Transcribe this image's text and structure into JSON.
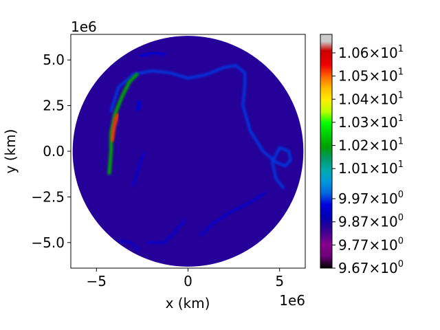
{
  "chart_data": {
    "type": "heatmap",
    "title": "",
    "xlabel": "x (km)",
    "ylabel": "y (km)",
    "x_offset_label": "1e6",
    "y_offset_label": "1e6",
    "xlim": [
      -6.4,
      6.4
    ],
    "ylim": [
      -6.4,
      6.4
    ],
    "domain": "disk",
    "domain_radius": 6.3,
    "x_ticks": [
      {
        "value": -5,
        "label": "−5"
      },
      {
        "value": 0,
        "label": "0"
      },
      {
        "value": 5,
        "label": "5"
      }
    ],
    "y_ticks": [
      {
        "value": 5.0,
        "label": "5.0"
      },
      {
        "value": 2.5,
        "label": "2.5"
      },
      {
        "value": 0.0,
        "label": "0.0"
      },
      {
        "value": -2.5,
        "label": "−2.5"
      },
      {
        "value": -5.0,
        "label": "−5.0"
      }
    ],
    "colorbar": {
      "colormap": "nipy_spectral",
      "min": 9.67,
      "max": 10.68,
      "ticks": [
        {
          "value": 9.67,
          "mantissa": "9.67",
          "exponent": "0"
        },
        {
          "value": 9.77,
          "mantissa": "9.77",
          "exponent": "0"
        },
        {
          "value": 9.87,
          "mantissa": "9.87",
          "exponent": "0"
        },
        {
          "value": 9.97,
          "mantissa": "9.97",
          "exponent": "0"
        },
        {
          "value": 10.1,
          "mantissa": "1.01",
          "exponent": "1"
        },
        {
          "value": 10.2,
          "mantissa": "1.02",
          "exponent": "1"
        },
        {
          "value": 10.3,
          "mantissa": "1.03",
          "exponent": "1"
        },
        {
          "value": 10.4,
          "mantissa": "1.04",
          "exponent": "1"
        },
        {
          "value": 10.5,
          "mantissa": "1.05",
          "exponent": "1"
        },
        {
          "value": 10.6,
          "mantissa": "1.06",
          "exponent": "1"
        }
      ],
      "multiply_sign": "×",
      "base": "10",
      "stops": [
        {
          "t": 0.0,
          "color": "#000000"
        },
        {
          "t": 0.05,
          "color": "#6a0078"
        },
        {
          "t": 0.1,
          "color": "#88008c"
        },
        {
          "t": 0.17,
          "color": "#2c0094"
        },
        {
          "t": 0.22,
          "color": "#0000b4"
        },
        {
          "t": 0.27,
          "color": "#0000dd"
        },
        {
          "t": 0.32,
          "color": "#0066dd"
        },
        {
          "t": 0.37,
          "color": "#0099dd"
        },
        {
          "t": 0.42,
          "color": "#00aaaa"
        },
        {
          "t": 0.47,
          "color": "#009966"
        },
        {
          "t": 0.52,
          "color": "#00a000"
        },
        {
          "t": 0.57,
          "color": "#00cc00"
        },
        {
          "t": 0.62,
          "color": "#00ff00"
        },
        {
          "t": 0.67,
          "color": "#bbff00"
        },
        {
          "t": 0.72,
          "color": "#ffee00"
        },
        {
          "t": 0.77,
          "color": "#ffbb00"
        },
        {
          "t": 0.82,
          "color": "#ff6600"
        },
        {
          "t": 0.87,
          "color": "#ee0000"
        },
        {
          "t": 0.93,
          "color": "#cc0000"
        },
        {
          "t": 0.97,
          "color": "#cccccc"
        },
        {
          "t": 1.0,
          "color": "#cccccc"
        }
      ]
    },
    "background_value": 9.85,
    "features": [
      {
        "name": "main-jet",
        "value": 9.97,
        "points": [
          [
            -4.2,
            2.2
          ],
          [
            -3.8,
            3.5
          ],
          [
            -3.0,
            4.2
          ],
          [
            -2.0,
            4.4
          ],
          [
            -1.0,
            4.3
          ],
          [
            0.0,
            4.0
          ],
          [
            1.0,
            4.2
          ],
          [
            2.0,
            4.6
          ],
          [
            2.6,
            4.7
          ],
          [
            3.1,
            4.3
          ],
          [
            3.1,
            3.6
          ],
          [
            3.0,
            2.5
          ],
          [
            3.4,
            1.1
          ],
          [
            4.1,
            0.0
          ],
          [
            4.8,
            -0.6
          ],
          [
            5.3,
            -0.8
          ],
          [
            5.6,
            -0.5
          ],
          [
            5.5,
            0.0
          ],
          [
            5.0,
            0.2
          ],
          [
            4.6,
            -0.6
          ],
          [
            4.8,
            -1.5
          ],
          [
            5.2,
            -2.0
          ]
        ],
        "width": 4
      },
      {
        "name": "jet-core",
        "value": 10.2,
        "points": [
          [
            -4.3,
            -1.2
          ],
          [
            -4.2,
            0.0
          ],
          [
            -4.2,
            1.0
          ],
          [
            -4.0,
            2.0
          ],
          [
            -3.6,
            3.0
          ],
          [
            -3.2,
            3.8
          ],
          [
            -2.8,
            4.2
          ]
        ],
        "width": 5
      },
      {
        "name": "jet-peak",
        "value": 10.52,
        "points": [
          [
            -4.15,
            0.6
          ],
          [
            -4.05,
            1.3
          ],
          [
            -3.85,
            2.0
          ]
        ],
        "width": 5
      },
      {
        "name": "jet-max",
        "value": 10.62,
        "points": [
          [
            -4.1,
            1.2
          ],
          [
            -4.0,
            1.8
          ]
        ],
        "width": 3
      },
      {
        "name": "upper-eddy",
        "value": 9.93,
        "points": [
          [
            -2.6,
            5.2
          ],
          [
            -1.9,
            5.4
          ],
          [
            -1.3,
            5.3
          ]
        ],
        "width": 4
      },
      {
        "name": "left-eddy",
        "value": 9.93,
        "points": [
          [
            -2.8,
            2.3
          ],
          [
            -2.6,
            2.5
          ],
          [
            -2.7,
            2.7
          ]
        ],
        "width": 6
      },
      {
        "name": "mid-filament",
        "value": 9.93,
        "points": [
          [
            -2.4,
            -0.1
          ],
          [
            -2.6,
            -0.6
          ],
          [
            -2.8,
            -1.3
          ],
          [
            -3.0,
            -1.9
          ]
        ],
        "width": 3
      },
      {
        "name": "lower-filament",
        "value": 9.93,
        "points": [
          [
            -0.2,
            -3.8
          ],
          [
            -0.7,
            -4.4
          ],
          [
            -1.3,
            -5.0
          ],
          [
            -2.2,
            -5.0
          ]
        ],
        "width": 3
      },
      {
        "name": "right-filament",
        "value": 9.93,
        "points": [
          [
            4.2,
            -2.3
          ],
          [
            3.2,
            -2.9
          ],
          [
            2.2,
            -3.4
          ],
          [
            1.3,
            -4.0
          ],
          [
            0.7,
            -4.6
          ]
        ],
        "width": 3
      },
      {
        "name": "lower-left-swirl",
        "value": 9.93,
        "points": [
          [
            -3.7,
            -4.9
          ],
          [
            -3.1,
            -5.0
          ],
          [
            -2.7,
            -5.4
          ]
        ],
        "width": 3
      }
    ]
  }
}
